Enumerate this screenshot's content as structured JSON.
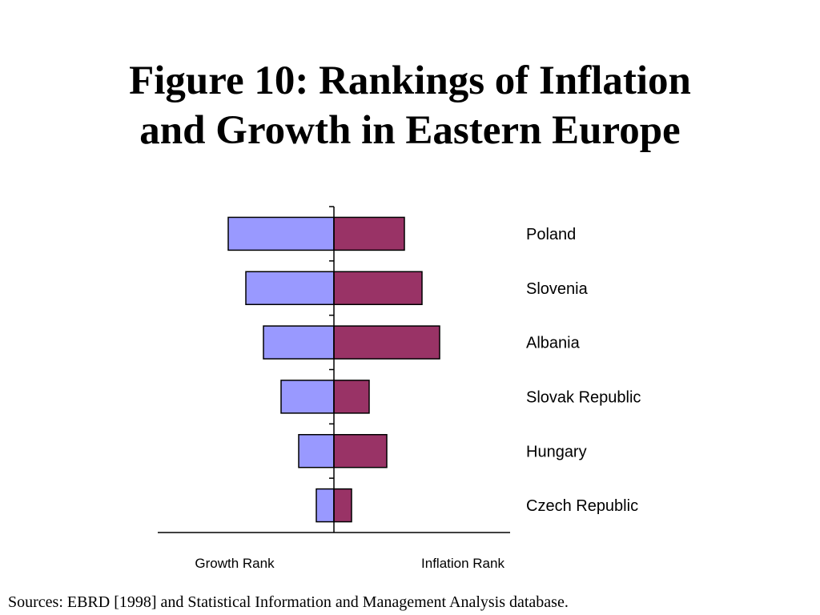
{
  "title": {
    "line1": "Figure 10:  Rankings of Inflation",
    "line2": "and Growth in Eastern Europe"
  },
  "sources": "Sources:  EBRD [1998] and Statistical Information and  Management Analysis database.",
  "colors": {
    "growth": "#9999ff",
    "inflation": "#993366",
    "outline": "#000000"
  },
  "chart_data": {
    "type": "bar",
    "orientation": "horizontal",
    "layout": "diverging",
    "categories": [
      "Poland",
      "Slovenia",
      "Albania",
      "Slovak Republic",
      "Hungary",
      "Czech Republic"
    ],
    "series": [
      {
        "name": "Growth Rank",
        "side": "left",
        "values": [
          6,
          5,
          4,
          3,
          2,
          1
        ]
      },
      {
        "name": "Inflation Rank",
        "side": "right",
        "values": [
          4,
          5,
          6,
          2,
          3,
          1
        ]
      }
    ],
    "xlabel_left": "Growth Rank",
    "xlabel_right": "Inflation Rank",
    "xlim": [
      -10,
      10
    ],
    "grid": false,
    "legend": "none"
  }
}
